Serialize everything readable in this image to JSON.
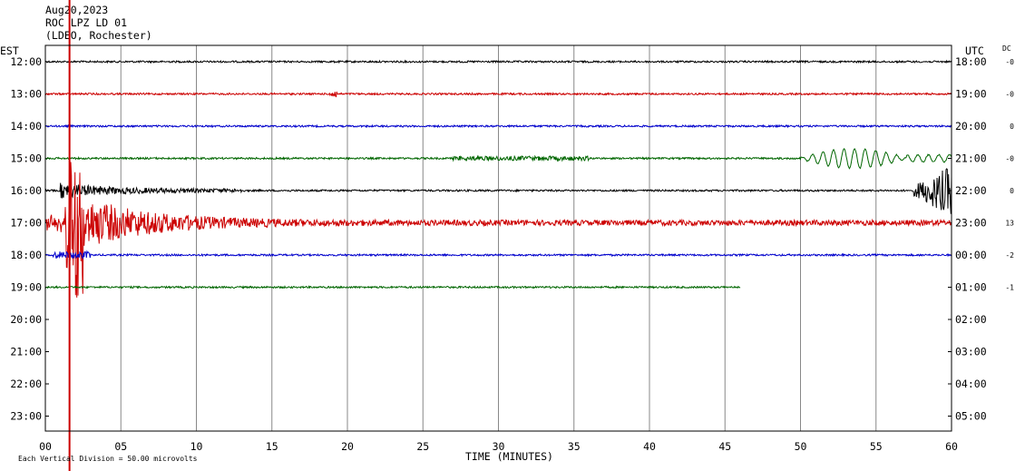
{
  "header": {
    "date": "Aug20,2023",
    "station": "ROC LPZ LD 01",
    "location": "(LDEO, Rochester)"
  },
  "left_axis_label": "EST",
  "right_axis_label": "UTC",
  "dc_label": "DC",
  "footer_note": "Each Vertical Division =   50.00 microvolts",
  "chart_data": {
    "type": "line",
    "title": "ROC LPZ LD 01",
    "xlabel": "TIME (MINUTES)",
    "ylabel": "",
    "xlim": [
      0,
      60
    ],
    "x_ticks": [
      "00",
      "05",
      "10",
      "15",
      "20",
      "25",
      "30",
      "35",
      "40",
      "45",
      "50",
      "55",
      "60"
    ],
    "y_ticks_left": [
      "12:00",
      "13:00",
      "14:00",
      "15:00",
      "16:00",
      "17:00",
      "18:00",
      "19:00",
      "20:00",
      "21:00",
      "22:00",
      "23:00"
    ],
    "y_ticks_right": [
      "18:00",
      "19:00",
      "20:00",
      "21:00",
      "22:00",
      "23:00",
      "00:00",
      "01:00",
      "02:00",
      "03:00",
      "04:00",
      "05:00"
    ],
    "grid": true,
    "trace_colors": [
      "#000000",
      "#cc0000",
      "#0000cc",
      "#006600"
    ],
    "series": [
      {
        "name": "12:00",
        "dc": "-0",
        "end_minute": 60
      },
      {
        "name": "13:00",
        "dc": "-0",
        "end_minute": 60
      },
      {
        "name": "14:00",
        "dc": "0",
        "end_minute": 60
      },
      {
        "name": "15:00",
        "dc": "-0",
        "end_minute": 60
      },
      {
        "name": "16:00",
        "dc": "0",
        "end_minute": 60
      },
      {
        "name": "17:00",
        "dc": "13",
        "end_minute": 60
      },
      {
        "name": "18:00",
        "dc": "-2",
        "end_minute": 60
      },
      {
        "name": "19:00",
        "dc": "-1",
        "end_minute": 46
      }
    ]
  }
}
